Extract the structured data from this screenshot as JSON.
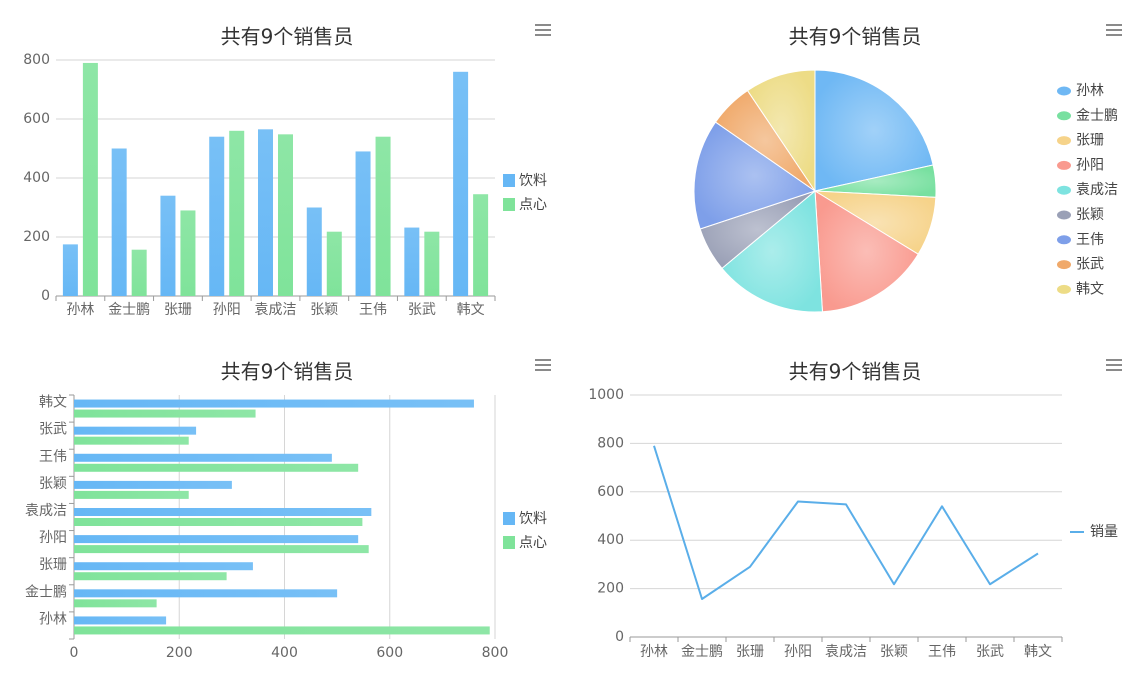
{
  "colors": {
    "drink": "#66b7f5",
    "snack": "#7fe39a",
    "line": "#5aaee9",
    "grid": "#d6d6d6",
    "axis": "#9a9a9a",
    "menu": "#8a8a8a",
    "pie": [
      "#6fb8f4",
      "#78e0a0",
      "#f6d38a",
      "#f99a8f",
      "#7ee3e0",
      "#9aa0b6",
      "#7e9fe9",
      "#f0a96a",
      "#eddc86"
    ]
  },
  "menu_icon": "hamburger-menu-icon",
  "chart_data": [
    {
      "type": "bar",
      "title": "共有9个销售员",
      "categories": [
        "孙林",
        "金士鹏",
        "张珊",
        "孙阳",
        "袁成洁",
        "张颖",
        "王伟",
        "张武",
        "韩文"
      ],
      "series": [
        {
          "name": "饮料",
          "values": [
            175,
            500,
            340,
            540,
            565,
            300,
            490,
            232,
            760
          ]
        },
        {
          "name": "点心",
          "values": [
            790,
            157,
            290,
            560,
            548,
            218,
            540,
            218,
            345
          ]
        }
      ],
      "ylim": [
        0,
        800
      ],
      "yticks": [
        "0",
        "200",
        "400",
        "600",
        "800"
      ],
      "legend": "right",
      "grid": true
    },
    {
      "type": "pie",
      "title": "共有9个销售员",
      "labels": [
        "孙林",
        "金士鹏",
        "张珊",
        "孙阳",
        "袁成洁",
        "张颖",
        "王伟",
        "张武",
        "韩文"
      ],
      "values": [
        790,
        157,
        290,
        560,
        548,
        218,
        540,
        218,
        345
      ],
      "legend": "right"
    },
    {
      "type": "bar",
      "orientation": "horizontal",
      "title": "共有9个销售员",
      "categories": [
        "孙林",
        "金士鹏",
        "张珊",
        "孙阳",
        "袁成洁",
        "张颖",
        "王伟",
        "张武",
        "韩文"
      ],
      "series": [
        {
          "name": "饮料",
          "values": [
            175,
            500,
            340,
            540,
            565,
            300,
            490,
            232,
            760
          ]
        },
        {
          "name": "点心",
          "values": [
            790,
            157,
            290,
            560,
            548,
            218,
            540,
            218,
            345
          ]
        }
      ],
      "xlim": [
        0,
        800
      ],
      "xticks": [
        "0",
        "200",
        "400",
        "600",
        "800"
      ],
      "legend": "right",
      "grid": true
    },
    {
      "type": "line",
      "title": "共有9个销售员",
      "categories": [
        "孙林",
        "金士鹏",
        "张珊",
        "孙阳",
        "袁成洁",
        "张颖",
        "王伟",
        "张武",
        "韩文"
      ],
      "series": [
        {
          "name": "销量",
          "values": [
            790,
            157,
            290,
            560,
            548,
            218,
            540,
            218,
            345
          ]
        }
      ],
      "ylim": [
        0,
        1000
      ],
      "yticks": [
        "0",
        "200",
        "400",
        "600",
        "800",
        "1000"
      ],
      "legend": "right",
      "grid": true
    }
  ]
}
